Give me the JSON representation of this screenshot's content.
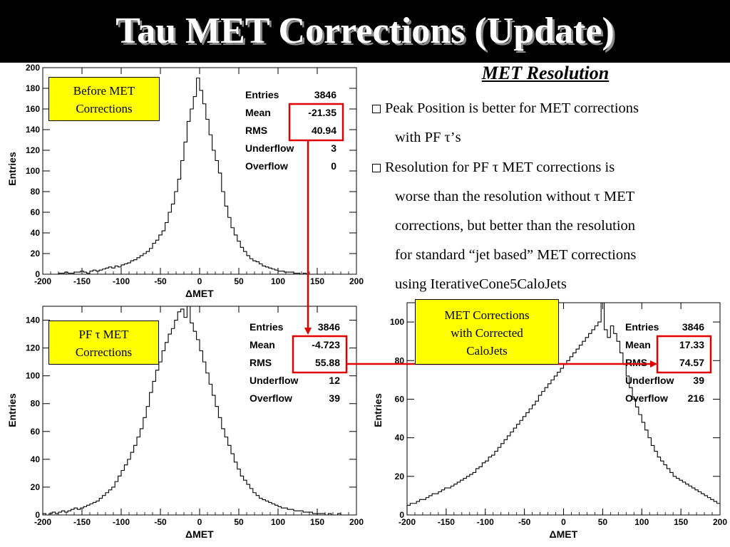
{
  "slide": {
    "title": "Tau MET Corrections (Update)",
    "notes": {
      "heading": "MET Resolution",
      "bullets": [
        {
          "lines": [
            "Peak Position is better for MET corrections",
            "with PF τ’s"
          ]
        },
        {
          "lines": [
            "Resolution for PF τ MET corrections is",
            "worse than the resolution without τ MET",
            "corrections, but better than the resolution",
            "for standard “jet based” MET corrections",
            "using IterativeCone5CaloJets"
          ]
        }
      ]
    }
  },
  "colors": {
    "highlight": "#e00000",
    "label_bg": "#ffff00"
  },
  "chart_data": [
    {
      "type": "bar",
      "label_box": [
        "Before MET",
        "Corrections"
      ],
      "xlabel": "ΔMET",
      "ylabel": "Entries",
      "xlim": [
        -200,
        200
      ],
      "ylim": [
        0,
        200
      ],
      "xticks": [
        -200,
        -150,
        -100,
        -50,
        0,
        50,
        100,
        150,
        200
      ],
      "yticks": [
        0,
        20,
        40,
        60,
        80,
        100,
        120,
        140,
        160,
        180,
        200
      ],
      "stats": [
        [
          "Entries",
          "3846"
        ],
        [
          "Mean",
          "-21.35"
        ],
        [
          "RMS",
          "40.94"
        ],
        [
          "Underflow",
          "3"
        ],
        [
          "Overflow",
          "0"
        ]
      ],
      "highlight_rows": [
        1,
        2
      ],
      "bin_width": 4,
      "x_start": -200,
      "values": [
        0,
        0,
        0,
        0,
        0,
        1,
        1,
        2,
        1,
        1,
        2,
        2,
        3,
        2,
        1,
        3,
        4,
        3,
        4,
        5,
        6,
        7,
        6,
        8,
        7,
        9,
        10,
        11,
        13,
        14,
        16,
        18,
        20,
        22,
        25,
        30,
        33,
        38,
        42,
        50,
        60,
        68,
        80,
        92,
        110,
        128,
        148,
        160,
        172,
        190,
        178,
        165,
        150,
        135,
        120,
        110,
        98,
        80,
        66,
        55,
        45,
        38,
        32,
        26,
        22,
        18,
        15,
        13,
        12,
        10,
        8,
        7,
        6,
        5,
        4,
        3,
        3,
        2,
        2,
        2,
        1,
        1,
        0,
        1,
        0,
        0,
        0,
        0,
        0,
        0,
        0,
        0,
        0,
        0,
        0,
        0,
        0,
        0,
        0,
        0
      ]
    },
    {
      "type": "bar",
      "label_box": [
        "PF τ MET",
        "Corrections"
      ],
      "xlabel": "ΔMET",
      "ylabel": "Entries",
      "xlim": [
        -200,
        200
      ],
      "ylim": [
        0,
        150
      ],
      "xticks": [
        -200,
        -150,
        -100,
        -50,
        0,
        50,
        100,
        150,
        200
      ],
      "yticks": [
        0,
        20,
        40,
        60,
        80,
        100,
        120,
        140
      ],
      "stats": [
        [
          "Entries",
          "3846"
        ],
        [
          "Mean",
          "-4.723"
        ],
        [
          "RMS",
          "55.88"
        ],
        [
          "Underflow",
          "12"
        ],
        [
          "Overflow",
          "39"
        ]
      ],
      "highlight_rows": [
        1,
        2
      ],
      "bin_width": 4,
      "x_start": -200,
      "values": [
        1,
        0,
        1,
        2,
        1,
        2,
        3,
        2,
        3,
        4,
        5,
        4,
        5,
        6,
        7,
        8,
        9,
        10,
        12,
        14,
        16,
        18,
        20,
        24,
        28,
        32,
        36,
        40,
        45,
        50,
        56,
        62,
        70,
        78,
        88,
        96,
        104,
        110,
        118,
        124,
        130,
        134,
        140,
        146,
        148,
        142,
        150,
        138,
        132,
        126,
        118,
        110,
        102,
        94,
        86,
        78,
        70,
        62,
        56,
        50,
        44,
        38,
        33,
        28,
        25,
        22,
        19,
        16,
        14,
        12,
        11,
        10,
        9,
        8,
        7,
        6,
        5,
        5,
        4,
        4,
        3,
        3,
        3,
        2,
        2,
        2,
        1,
        1,
        1,
        1,
        0,
        1,
        0,
        0,
        1,
        0,
        0,
        0,
        0,
        0
      ]
    },
    {
      "type": "bar",
      "label_box": [
        "MET Corrections",
        "with Corrected",
        "CaloJets"
      ],
      "xlabel": "ΔMET",
      "ylabel": "Entries",
      "xlim": [
        -200,
        200
      ],
      "ylim": [
        0,
        110
      ],
      "xticks": [
        -200,
        -150,
        -100,
        -50,
        0,
        50,
        100,
        150,
        200
      ],
      "yticks": [
        0,
        20,
        40,
        60,
        80,
        100
      ],
      "stats": [
        [
          "Entries",
          "3846"
        ],
        [
          "Mean",
          "17.33"
        ],
        [
          "RMS",
          "74.57"
        ],
        [
          "Underflow",
          "39"
        ],
        [
          "Overflow",
          "216"
        ]
      ],
      "highlight_rows": [
        1,
        2
      ],
      "bin_width": 4,
      "x_start": -200,
      "values": [
        5,
        6,
        6,
        7,
        8,
        8,
        9,
        10,
        11,
        11,
        12,
        13,
        14,
        14,
        15,
        16,
        17,
        18,
        19,
        20,
        21,
        22,
        24,
        25,
        27,
        28,
        30,
        31,
        33,
        35,
        37,
        39,
        41,
        43,
        45,
        47,
        49,
        51,
        53,
        55,
        57,
        59,
        62,
        64,
        66,
        68,
        70,
        72,
        74,
        76,
        78,
        80,
        82,
        84,
        86,
        88,
        90,
        92,
        94,
        96,
        98,
        100,
        110,
        96,
        92,
        98,
        94,
        90,
        84,
        78,
        72,
        66,
        60,
        56,
        52,
        48,
        44,
        40,
        36,
        33,
        30,
        28,
        26,
        24,
        22,
        20,
        19,
        18,
        17,
        16,
        15,
        14,
        13,
        12,
        11,
        10,
        9,
        8,
        7,
        6
      ]
    }
  ]
}
